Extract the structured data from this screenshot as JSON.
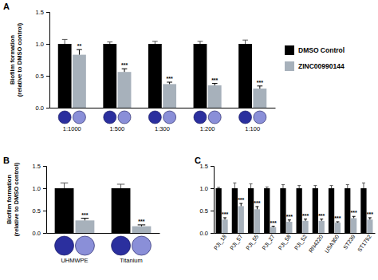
{
  "chart_data": [
    {
      "type": "bar",
      "title": "A",
      "y_label": "Biofilm formation (relative to DMSO control)",
      "categories": [
        "1:1000",
        "1:500",
        "1:300",
        "1:200",
        "1:100"
      ],
      "ylim": [
        0,
        1.5
      ],
      "yticks": [
        {
          "value": 0,
          "label": "0.0"
        },
        {
          "value": 0.5,
          "label": "0.5"
        },
        {
          "value": 1,
          "label": "1.0"
        },
        {
          "value": 1.5,
          "label": "1.5"
        }
      ],
      "legend": "right",
      "series": [
        {
          "name": "DMSO Control",
          "color": "#000000",
          "values": [
            1,
            1,
            1,
            1,
            1
          ],
          "errors": [
            0.07,
            0.03,
            0.04,
            0.04,
            0.06
          ]
        },
        {
          "name": "ZINC00990144",
          "color": "#a7b1bb",
          "values": [
            0.83,
            0.56,
            0.37,
            0.35,
            0.3
          ],
          "errors": [
            0.08,
            0.05,
            0.03,
            0.03,
            0.04
          ],
          "annotations": [
            "**",
            "***",
            "***",
            "***",
            "***"
          ]
        }
      ]
    },
    {
      "type": "bar",
      "title": "B",
      "y_label": "Biofilm formation (relative to DMSO control)",
      "categories": [
        "UHMWPE",
        "Titanium"
      ],
      "ylim": [
        0,
        1.5
      ],
      "yticks": [
        {
          "value": 0,
          "label": "0.0"
        },
        {
          "value": 0.5,
          "label": "0.5"
        },
        {
          "value": 1,
          "label": "1.0"
        },
        {
          "value": 1.5,
          "label": "1.5"
        }
      ],
      "series": [
        {
          "name": "DMSO Control",
          "color": "#000000",
          "values": [
            1,
            1
          ],
          "errors": [
            0.12,
            0.09
          ]
        },
        {
          "name": "ZINC00990144",
          "color": "#a7b1bb",
          "values": [
            0.28,
            0.15
          ],
          "errors": [
            0.05,
            0.03
          ],
          "annotations": [
            "***",
            "***"
          ]
        }
      ]
    },
    {
      "type": "bar",
      "title": "C",
      "categories": [
        "PJI_18",
        "PJI_57",
        "PJI_55",
        "PJI_27",
        "PJI_58",
        "PJI_52",
        "RN4220",
        "USA300",
        "ST239",
        "ST1792"
      ],
      "ylim": [
        0,
        1.5
      ],
      "yticks": [
        {
          "value": 0,
          "label": "0.0"
        },
        {
          "value": 0.5,
          "label": "0.5"
        },
        {
          "value": 1,
          "label": "1.0"
        },
        {
          "value": 1.5,
          "label": "1.5"
        }
      ],
      "series": [
        {
          "name": "DMSO Control",
          "color": "#000000",
          "values": [
            1,
            1,
            1,
            1,
            1,
            1,
            1,
            1,
            1,
            1
          ],
          "errors": [
            0.02,
            0.12,
            0.1,
            0.03,
            0.08,
            0.06,
            0.06,
            0.06,
            0.08,
            0.12
          ]
        },
        {
          "name": "ZINC00990144",
          "color": "#a7b1bb",
          "values": [
            0.3,
            0.6,
            0.53,
            0.13,
            0.25,
            0.27,
            0.27,
            0.23,
            0.33,
            0.3
          ],
          "errors": [
            0.04,
            0.06,
            0.06,
            0.02,
            0.04,
            0.04,
            0.04,
            0.02,
            0.04,
            0.04
          ],
          "annotations": [
            "***",
            "***",
            "***",
            "***",
            "***",
            "***",
            "***",
            "***",
            "***",
            "***"
          ]
        }
      ]
    }
  ]
}
